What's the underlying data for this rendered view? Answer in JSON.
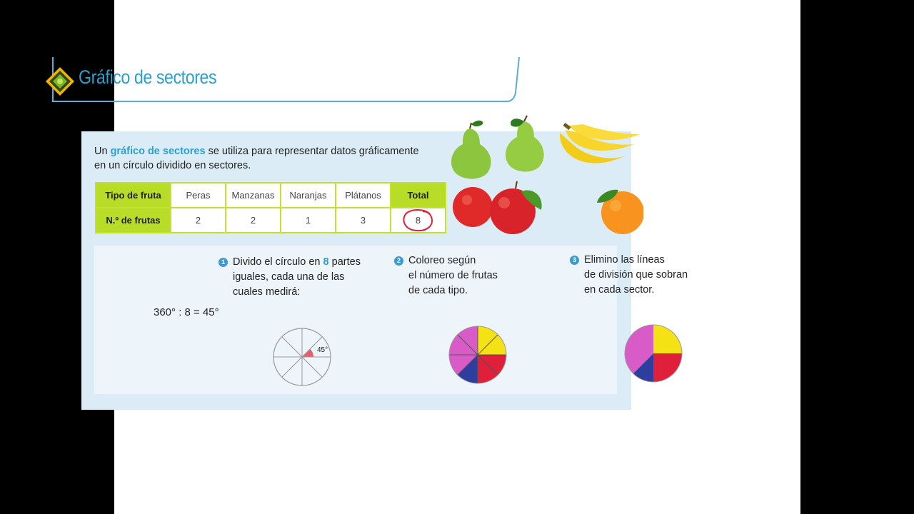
{
  "header": {
    "title": "Gráfico de sectores"
  },
  "intro": {
    "prefix": "Un ",
    "highlight": "gráfico de sectores",
    "rest_line1": " se utiliza para representar datos gráficamente",
    "line2": "en un círculo dividido en sectores."
  },
  "table": {
    "row1_header": "Tipo de fruta",
    "row2_header": "N.º de frutas",
    "fruits": [
      "Peras",
      "Manzanas",
      "Naranjas",
      "Plátanos"
    ],
    "counts": [
      "2",
      "2",
      "1",
      "3"
    ],
    "total_label": "Total",
    "total_value": "8"
  },
  "steps": [
    {
      "number": "1",
      "line1_a": "Divido el círculo en ",
      "line1_b": "8",
      "line1_c": " partes",
      "line2": "iguales, cada una de las",
      "line3": "cuales medirá:"
    },
    {
      "number": "2",
      "line1": "Coloreo según",
      "line2": "el número de frutas",
      "line3": "de cada tipo."
    },
    {
      "number": "3",
      "line1": "Elimino las líneas",
      "line2": "de división que sobran",
      "line3": "en cada sector."
    }
  ],
  "formula": "360° : 8 = 45°",
  "angle_label": "45°",
  "colors": {
    "title": "#2aa0cf",
    "table_header": "#b8dd28",
    "panel": "#dcecf6",
    "peras": "#f5e214",
    "manzanas": "#e0203a",
    "naranjas": "#2e3e9e",
    "platanos": "#d95bc7"
  },
  "chart_data": {
    "type": "pie",
    "categories": [
      "Peras",
      "Manzanas",
      "Naranjas",
      "Plátanos"
    ],
    "values": [
      2,
      2,
      1,
      3
    ]
  }
}
